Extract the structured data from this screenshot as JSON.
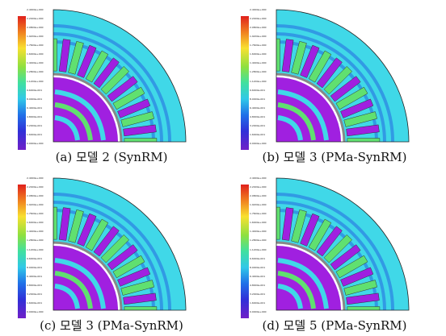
{
  "captions": [
    "(a) 모델 2 (SynRM)",
    "(b) 모델 3 (PMa-SynRM)",
    "(c) 모델 3 (PMa-SynRM)",
    "(d) 모델 5 (PMa-SynRM)"
  ],
  "legend_ticks": [
    "2.4000e+000",
    "2.2400e+000",
    "2.0800e+000",
    "1.9200e+000",
    "1.7600e+000",
    "1.6000e+000",
    "1.4400e+000",
    "1.2800e+000",
    "1.1200e+000",
    "9.6000e-001",
    "8.0000e-001",
    "6.4000e-001",
    "4.8000e-001",
    "3.2000e-001",
    "1.6000e-001",
    "0.0000e+000"
  ],
  "colors": {
    "stator": "#40d8e8",
    "rotor": "#a020e0",
    "tooth": "#60e070",
    "flux": "#2050e0"
  },
  "icons": {
    "plot": "flux-density-plot-icon"
  }
}
